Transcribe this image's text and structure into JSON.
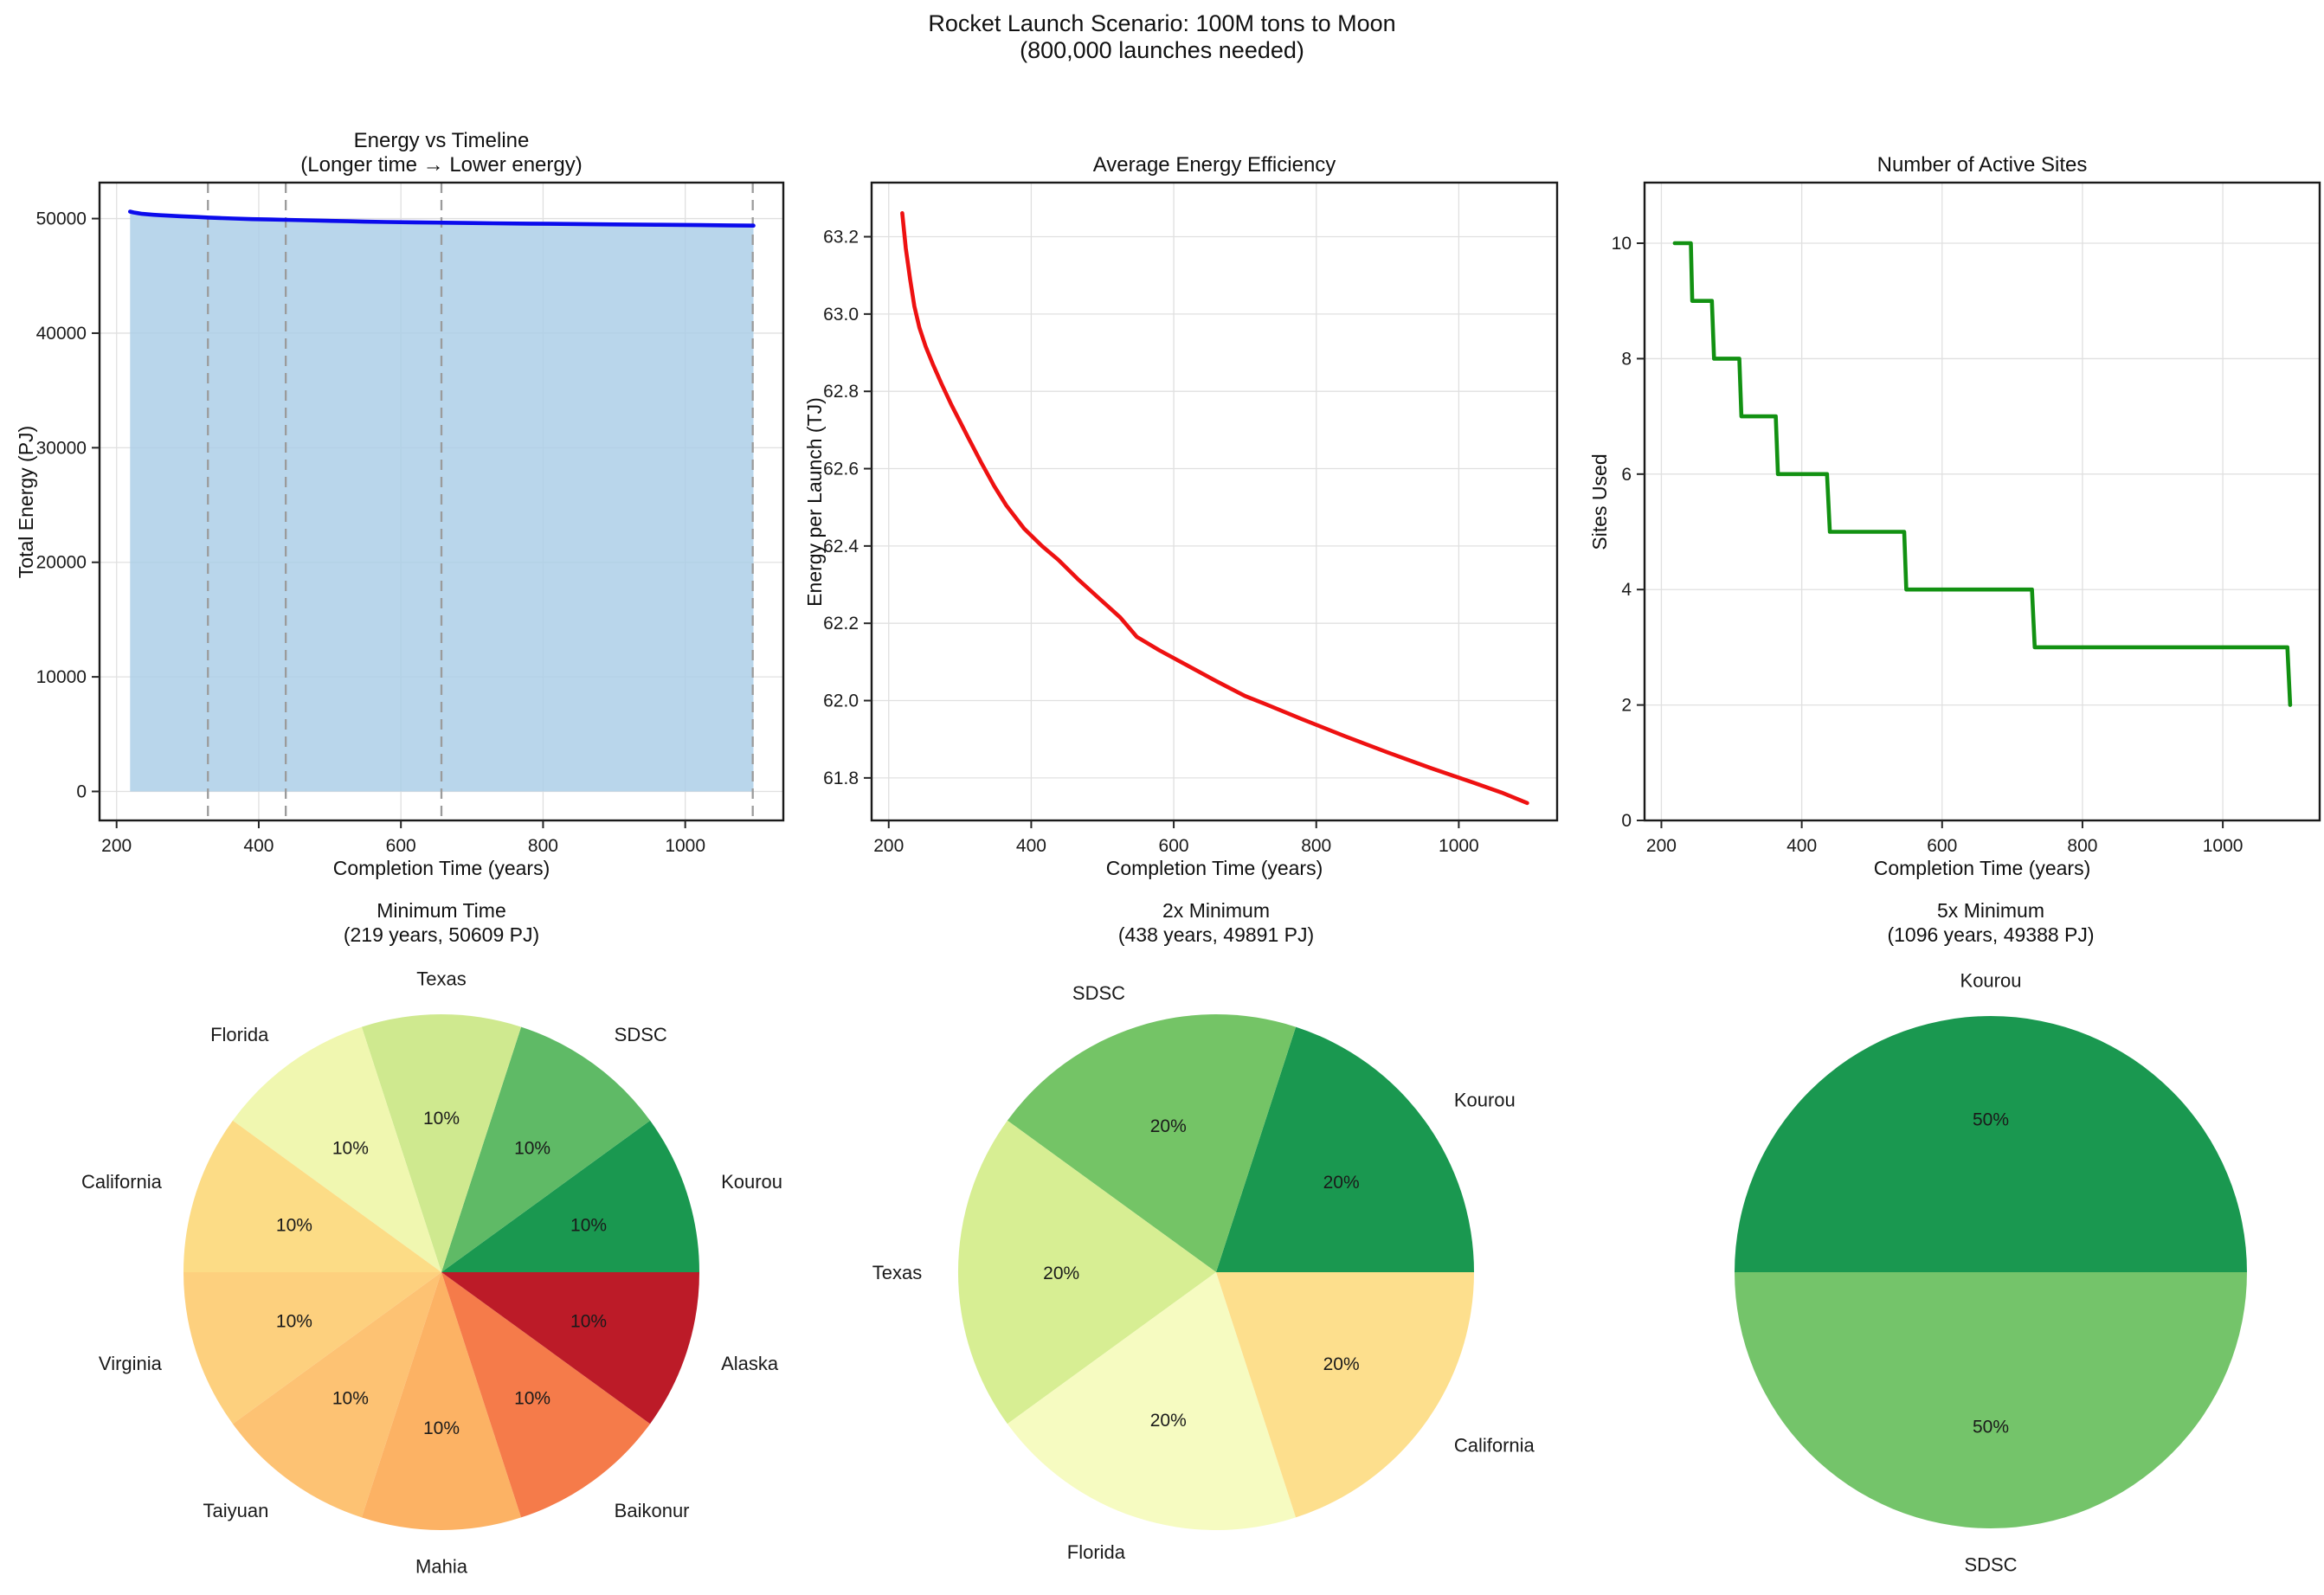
{
  "suptitle": {
    "line1": "Rocket Launch Scenario: 100M tons to Moon",
    "line2": "(800,000 launches needed)"
  },
  "background": "#ffffff",
  "grid_color": "#e0e0e0",
  "spine_color": "#1a1a1a",
  "chart_data": [
    {
      "type": "area",
      "title_line1": "Energy vs Timeline",
      "title_line2": "(Longer time → Lower energy)",
      "xlabel": "Completion Time (years)",
      "ylabel": "Total Energy (PJ)",
      "xlim": [
        176,
        1138
      ],
      "ylim": [
        -2530,
        53140
      ],
      "xticks": [
        200,
        400,
        600,
        800,
        1000
      ],
      "xtick_labels": [
        "200",
        "400",
        "600",
        "800",
        "1000"
      ],
      "yticks": [
        0,
        10000,
        20000,
        30000,
        40000,
        50000
      ],
      "ytick_labels": [
        "0",
        "10000",
        "20000",
        "30000",
        "40000",
        "50000"
      ],
      "grid": true,
      "legend": "none",
      "line_color": "#0b0bec",
      "fill_color": "#a9cde6",
      "vline_color": "#9b9b9b",
      "vlines": [
        328.5,
        438,
        657,
        1095
      ],
      "points": [
        [
          219,
          50609
        ],
        [
          224,
          50536
        ],
        [
          230,
          50472
        ],
        [
          236,
          50416
        ],
        [
          243,
          50372
        ],
        [
          252,
          50332
        ],
        [
          262,
          50296
        ],
        [
          274,
          50256
        ],
        [
          288,
          50212
        ],
        [
          302,
          50172
        ],
        [
          313,
          50140
        ],
        [
          330,
          50092
        ],
        [
          348,
          50044
        ],
        [
          365,
          50004
        ],
        [
          390,
          49956
        ],
        [
          415,
          49920
        ],
        [
          438,
          49891
        ],
        [
          465,
          49852
        ],
        [
          495,
          49812
        ],
        [
          525,
          49772
        ],
        [
          548,
          49732
        ],
        [
          580,
          49704
        ],
        [
          620,
          49672
        ],
        [
          660,
          49640
        ],
        [
          700,
          49610
        ],
        [
          730,
          49592
        ],
        [
          780,
          49562
        ],
        [
          840,
          49526
        ],
        [
          900,
          49493
        ],
        [
          960,
          49461
        ],
        [
          1020,
          49430
        ],
        [
          1060,
          49410
        ],
        [
          1096,
          49388
        ]
      ]
    },
    {
      "type": "line",
      "title_line1": "Average Energy Efficiency",
      "title_line2": "",
      "xlabel": "Completion Time (years)",
      "ylabel": "Energy per Launch (TJ)",
      "xlim": [
        176,
        1138
      ],
      "ylim": [
        61.69,
        63.34
      ],
      "xticks": [
        200,
        400,
        600,
        800,
        1000
      ],
      "xtick_labels": [
        "200",
        "400",
        "600",
        "800",
        "1000"
      ],
      "yticks": [
        61.8,
        62.0,
        62.2,
        62.4,
        62.6,
        62.8,
        63.0,
        63.2
      ],
      "ytick_labels": [
        "61.8",
        "62.0",
        "62.2",
        "62.4",
        "62.6",
        "62.8",
        "63.0",
        "63.2"
      ],
      "grid": true,
      "legend": "none",
      "line_color": "#ee1111",
      "points": [
        [
          219,
          63.261
        ],
        [
          224,
          63.17
        ],
        [
          230,
          63.09
        ],
        [
          236,
          63.02
        ],
        [
          243,
          62.965
        ],
        [
          252,
          62.915
        ],
        [
          262,
          62.87
        ],
        [
          274,
          62.82
        ],
        [
          288,
          62.765
        ],
        [
          302,
          62.715
        ],
        [
          313,
          62.675
        ],
        [
          330,
          62.615
        ],
        [
          348,
          62.555
        ],
        [
          365,
          62.505
        ],
        [
          390,
          62.445
        ],
        [
          415,
          62.4
        ],
        [
          438,
          62.364
        ],
        [
          465,
          62.315
        ],
        [
          495,
          62.265
        ],
        [
          525,
          62.215
        ],
        [
          548,
          62.165
        ],
        [
          580,
          62.13
        ],
        [
          620,
          62.09
        ],
        [
          660,
          62.05
        ],
        [
          700,
          62.012
        ],
        [
          730,
          61.99
        ],
        [
          780,
          61.952
        ],
        [
          840,
          61.908
        ],
        [
          900,
          61.866
        ],
        [
          960,
          61.826
        ],
        [
          1020,
          61.788
        ],
        [
          1060,
          61.762
        ],
        [
          1096,
          61.735
        ]
      ]
    },
    {
      "type": "line",
      "title_line1": "Number of Active Sites",
      "title_line2": "",
      "xlabel": "Completion Time (years)",
      "ylabel": "Sites Used",
      "xlim": [
        176,
        1138
      ],
      "ylim": [
        0,
        11.05
      ],
      "xticks": [
        200,
        400,
        600,
        800,
        1000
      ],
      "xtick_labels": [
        "200",
        "400",
        "600",
        "800",
        "1000"
      ],
      "yticks": [
        0,
        2,
        4,
        6,
        8,
        10
      ],
      "ytick_labels": [
        "0",
        "2",
        "4",
        "6",
        "8",
        "10"
      ],
      "grid": true,
      "legend": "none",
      "line_color": "#129112",
      "points": [
        [
          219,
          10
        ],
        [
          242,
          10
        ],
        [
          244,
          9
        ],
        [
          272,
          9
        ],
        [
          275,
          8
        ],
        [
          311,
          8
        ],
        [
          314,
          7
        ],
        [
          363,
          7
        ],
        [
          366,
          6
        ],
        [
          436,
          6
        ],
        [
          440,
          5
        ],
        [
          546,
          5
        ],
        [
          549,
          4
        ],
        [
          728,
          4
        ],
        [
          732,
          3
        ],
        [
          1092,
          3
        ],
        [
          1096,
          2
        ]
      ]
    },
    {
      "type": "pie",
      "title_line1": "Minimum Time",
      "title_line2": "(219 years, 50609 PJ)",
      "start_angle_deg": 0,
      "direction": "counterclockwise",
      "slices": [
        {
          "label": "Kourou",
          "value": 10,
          "pct": "10%",
          "color": "#1a9850"
        },
        {
          "label": "SDSC",
          "value": 10,
          "pct": "10%",
          "color": "#5fba66"
        },
        {
          "label": "Texas",
          "value": 10,
          "pct": "10%",
          "color": "#cfe98f"
        },
        {
          "label": "Florida",
          "value": 10,
          "pct": "10%",
          "color": "#f0f7b0"
        },
        {
          "label": "California",
          "value": 10,
          "pct": "10%",
          "color": "#fcdc86"
        },
        {
          "label": "Virginia",
          "value": 10,
          "pct": "10%",
          "color": "#fdd07e"
        },
        {
          "label": "Taiyuan",
          "value": 10,
          "pct": "10%",
          "color": "#fdc273"
        },
        {
          "label": "Mahia",
          "value": 10,
          "pct": "10%",
          "color": "#fcb264"
        },
        {
          "label": "Baikonur",
          "value": 10,
          "pct": "10%",
          "color": "#f57b4a"
        },
        {
          "label": "Alaska",
          "value": 10,
          "pct": "10%",
          "color": "#bc1b28"
        }
      ]
    },
    {
      "type": "pie",
      "title_line1": "2x Minimum",
      "title_line2": "(438 years, 49891 PJ)",
      "start_angle_deg": 0,
      "direction": "counterclockwise",
      "slices": [
        {
          "label": "Kourou",
          "value": 20,
          "pct": "20%",
          "color": "#1a9850"
        },
        {
          "label": "SDSC",
          "value": 20,
          "pct": "20%",
          "color": "#74c466"
        },
        {
          "label": "Texas",
          "value": 20,
          "pct": "20%",
          "color": "#d7ee93"
        },
        {
          "label": "Florida",
          "value": 20,
          "pct": "20%",
          "color": "#f6fbc1"
        },
        {
          "label": "California",
          "value": 20,
          "pct": "20%",
          "color": "#fddf8d"
        }
      ]
    },
    {
      "type": "pie",
      "title_line1": "5x Minimum",
      "title_line2": "(1096 years, 49388 PJ)",
      "start_angle_deg": 0,
      "direction": "counterclockwise",
      "slices": [
        {
          "label": "Kourou",
          "value": 50,
          "pct": "50%",
          "color": "#1a9850"
        },
        {
          "label": "SDSC",
          "value": 50,
          "pct": "50%",
          "color": "#74c46a"
        }
      ]
    }
  ]
}
